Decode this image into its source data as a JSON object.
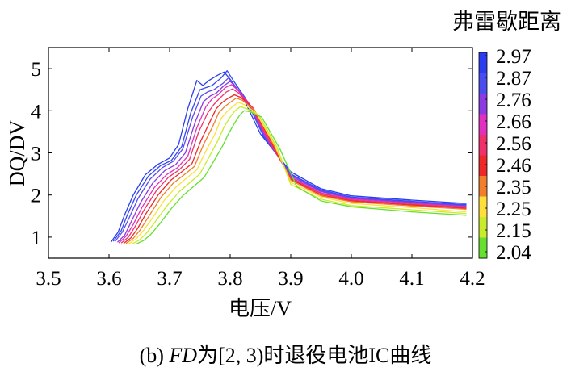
{
  "chart_data": {
    "type": "line",
    "title": "",
    "xlabel": "电压/V",
    "ylabel": "DQ/DV",
    "xlim": [
      3.5,
      4.2
    ],
    "ylim": [
      0.5,
      5.5
    ],
    "x_ticks": [
      "3.5",
      "3.6",
      "3.7",
      "3.8",
      "3.9",
      "4.0",
      "4.1",
      "4.2"
    ],
    "y_ticks": [
      "1",
      "2",
      "3",
      "4",
      "5"
    ],
    "grid": false,
    "colorbar": {
      "title": "弗雷歇距离",
      "tick_labels": [
        "2.97",
        "2.87",
        "2.76",
        "2.66",
        "2.56",
        "2.46",
        "2.35",
        "2.25",
        "2.15",
        "2.04"
      ],
      "colors": [
        "#2a3ef0",
        "#4a4cf0",
        "#8a3ae0",
        "#e030c0",
        "#f0306a",
        "#ee2828",
        "#f07e2c",
        "#ffe03a",
        "#c8ec2a",
        "#66e030"
      ]
    },
    "series": [
      {
        "color": "#2a3ef0",
        "x": [
          3.603,
          3.615,
          3.625,
          3.64,
          3.66,
          3.68,
          3.7,
          3.715,
          3.73,
          3.745,
          3.755,
          3.765,
          3.78,
          3.79,
          3.8,
          3.82,
          3.85,
          3.9,
          3.95,
          4.0,
          4.1,
          4.19
        ],
        "y": [
          0.88,
          1.12,
          1.5,
          2.0,
          2.48,
          2.72,
          2.88,
          3.2,
          4.05,
          4.72,
          4.6,
          4.72,
          4.85,
          4.92,
          4.75,
          4.35,
          3.45,
          2.55,
          2.15,
          1.98,
          1.88,
          1.8
        ]
      },
      {
        "color": "#3348f2",
        "x": [
          3.607,
          3.62,
          3.63,
          3.645,
          3.665,
          3.685,
          3.703,
          3.72,
          3.735,
          3.75,
          3.76,
          3.77,
          3.785,
          3.795,
          3.805,
          3.825,
          3.855,
          3.9,
          3.95,
          4.0,
          4.1,
          4.19
        ],
        "y": [
          0.9,
          1.15,
          1.52,
          2.0,
          2.45,
          2.7,
          2.82,
          3.15,
          3.95,
          4.5,
          4.55,
          4.6,
          4.78,
          4.95,
          4.72,
          4.3,
          3.4,
          2.5,
          2.12,
          1.95,
          1.85,
          1.77
        ]
      },
      {
        "color": "#5a4cf0",
        "x": [
          3.61,
          3.622,
          3.633,
          3.648,
          3.668,
          3.688,
          3.706,
          3.722,
          3.738,
          3.752,
          3.763,
          3.773,
          3.788,
          3.797,
          3.807,
          3.827,
          3.857,
          3.9,
          3.95,
          4.0,
          4.1,
          4.19
        ],
        "y": [
          0.9,
          1.12,
          1.45,
          1.92,
          2.38,
          2.65,
          2.8,
          3.1,
          3.85,
          4.35,
          4.45,
          4.5,
          4.65,
          4.78,
          4.6,
          4.25,
          3.38,
          2.48,
          2.1,
          1.93,
          1.83,
          1.75
        ]
      },
      {
        "color": "#8a3ae0",
        "x": [
          3.614,
          3.626,
          3.637,
          3.652,
          3.672,
          3.692,
          3.71,
          3.726,
          3.742,
          3.756,
          3.767,
          3.777,
          3.79,
          3.8,
          3.81,
          3.83,
          3.86,
          3.9,
          3.95,
          4.0,
          4.1,
          4.19
        ],
        "y": [
          0.88,
          1.05,
          1.38,
          1.82,
          2.28,
          2.58,
          2.72,
          3.0,
          3.72,
          4.22,
          4.35,
          4.42,
          4.6,
          4.7,
          4.55,
          4.2,
          3.35,
          2.45,
          2.08,
          1.92,
          1.82,
          1.73
        ]
      },
      {
        "color": "#e030c0",
        "x": [
          3.616,
          3.628,
          3.64,
          3.655,
          3.675,
          3.695,
          3.713,
          3.73,
          3.745,
          3.76,
          3.77,
          3.78,
          3.792,
          3.802,
          3.812,
          3.832,
          3.862,
          3.9,
          3.95,
          4.0,
          4.1,
          4.19
        ],
        "y": [
          0.86,
          1.02,
          1.3,
          1.72,
          2.18,
          2.48,
          2.65,
          2.92,
          3.6,
          4.1,
          4.28,
          4.38,
          4.55,
          4.62,
          4.5,
          4.15,
          3.32,
          2.42,
          2.05,
          1.9,
          1.8,
          1.72
        ]
      },
      {
        "color": "#f0306a",
        "x": [
          3.62,
          3.632,
          3.643,
          3.658,
          3.678,
          3.698,
          3.716,
          3.733,
          3.748,
          3.763,
          3.773,
          3.783,
          3.794,
          3.804,
          3.814,
          3.834,
          3.864,
          3.9,
          3.95,
          4.0,
          4.1,
          4.19
        ],
        "y": [
          0.86,
          1.0,
          1.25,
          1.65,
          2.1,
          2.42,
          2.6,
          2.85,
          3.5,
          3.95,
          4.15,
          4.3,
          4.45,
          4.52,
          4.42,
          4.12,
          3.3,
          2.4,
          2.03,
          1.88,
          1.78,
          1.7
        ]
      },
      {
        "color": "#ee2828",
        "x": [
          3.624,
          3.636,
          3.647,
          3.662,
          3.682,
          3.702,
          3.72,
          3.737,
          3.752,
          3.767,
          3.777,
          3.787,
          3.797,
          3.807,
          3.817,
          3.837,
          3.867,
          3.9,
          3.95,
          4.0,
          4.1,
          4.19
        ],
        "y": [
          0.85,
          0.98,
          1.2,
          1.58,
          2.02,
          2.35,
          2.55,
          2.75,
          3.3,
          3.75,
          4.05,
          4.2,
          4.3,
          4.38,
          4.32,
          4.08,
          3.28,
          2.38,
          2.0,
          1.86,
          1.76,
          1.68
        ]
      },
      {
        "color": "#f07e2c",
        "x": [
          3.628,
          3.64,
          3.651,
          3.666,
          3.686,
          3.706,
          3.724,
          3.741,
          3.756,
          3.771,
          3.781,
          3.791,
          3.8,
          3.81,
          3.82,
          3.84,
          3.87,
          3.9,
          3.95,
          4.0,
          4.1,
          4.19
        ],
        "y": [
          0.85,
          0.97,
          1.16,
          1.5,
          1.95,
          2.28,
          2.48,
          2.68,
          3.2,
          3.62,
          3.95,
          4.1,
          4.2,
          4.3,
          4.25,
          4.02,
          3.25,
          2.35,
          1.98,
          1.84,
          1.74,
          1.66
        ]
      },
      {
        "color": "#ffe03a",
        "x": [
          3.632,
          3.644,
          3.655,
          3.67,
          3.69,
          3.71,
          3.728,
          3.745,
          3.76,
          3.775,
          3.785,
          3.795,
          3.804,
          3.813,
          3.823,
          3.843,
          3.873,
          3.9,
          3.95,
          4.0,
          4.1,
          4.19
        ],
        "y": [
          0.84,
          0.95,
          1.12,
          1.42,
          1.85,
          2.18,
          2.4,
          2.6,
          3.05,
          3.45,
          3.82,
          3.98,
          4.1,
          4.2,
          4.15,
          3.95,
          3.2,
          2.3,
          1.95,
          1.8,
          1.7,
          1.6
        ]
      },
      {
        "color": "#c8ec2a",
        "x": [
          3.638,
          3.65,
          3.661,
          3.676,
          3.696,
          3.716,
          3.734,
          3.75,
          3.765,
          3.78,
          3.79,
          3.8,
          3.808,
          3.817,
          3.827,
          3.847,
          3.877,
          3.9,
          3.95,
          4.0,
          4.1,
          4.19
        ],
        "y": [
          0.84,
          0.93,
          1.08,
          1.36,
          1.75,
          2.08,
          2.3,
          2.5,
          2.9,
          3.3,
          3.62,
          3.85,
          4.0,
          4.1,
          4.05,
          3.9,
          3.15,
          2.25,
          1.9,
          1.75,
          1.65,
          1.56
        ]
      },
      {
        "color": "#66e030",
        "x": [
          3.645,
          3.657,
          3.668,
          3.683,
          3.703,
          3.723,
          3.741,
          3.757,
          3.772,
          3.787,
          3.797,
          3.807,
          3.815,
          3.823,
          3.832,
          3.852,
          3.882,
          3.91,
          3.95,
          4.0,
          4.1,
          4.19
        ],
        "y": [
          0.84,
          0.92,
          1.05,
          1.3,
          1.68,
          2.0,
          2.22,
          2.42,
          2.78,
          3.15,
          3.45,
          3.7,
          3.88,
          4.0,
          3.98,
          3.85,
          3.1,
          2.2,
          1.86,
          1.72,
          1.6,
          1.52
        ]
      }
    ]
  },
  "caption": {
    "part1": "(b) ",
    "part2": "FD",
    "part3": "为[2, 3)时退役电池IC曲线"
  }
}
